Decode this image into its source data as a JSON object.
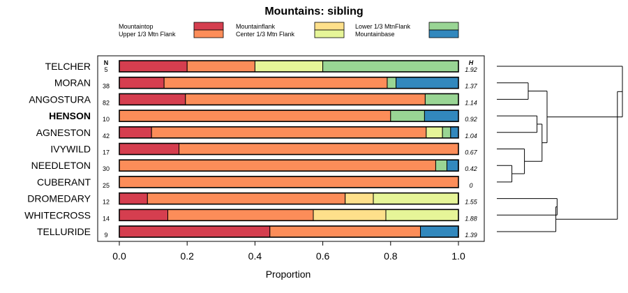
{
  "chart_data": {
    "type": "bar",
    "stacked": true,
    "orientation": "horizontal",
    "title": "Mountains: sibling",
    "xlabel": "Proportion",
    "ylabel": "",
    "xlim": [
      0,
      1
    ],
    "x_ticks": [
      "0.0",
      "0.2",
      "0.4",
      "0.6",
      "0.8",
      "1.0"
    ],
    "n_header": "N",
    "h_header": "H",
    "legend_position": "top",
    "series": [
      {
        "name": "Mountaintop",
        "color": "#d53e4f"
      },
      {
        "name": "Upper 1/3 Mtn Flank",
        "color": "#fc8d59"
      },
      {
        "name": "Mountainflank",
        "color": "#fee08b"
      },
      {
        "name": "Center 1/3 Mtn Flank",
        "color": "#e6f598"
      },
      {
        "name": "Lower 1/3 MtnFlank",
        "color": "#99d594"
      },
      {
        "name": "Mountainbase",
        "color": "#3288bd"
      }
    ],
    "rows": [
      {
        "label": "TELCHER",
        "bold": false,
        "n": "5",
        "h": "1.92",
        "values": [
          0.2,
          0.2,
          0.0,
          0.2,
          0.4,
          0.0
        ]
      },
      {
        "label": "MORAN",
        "bold": false,
        "n": "38",
        "h": "1.37",
        "values": [
          0.132,
          0.658,
          0.0,
          0.0,
          0.026,
          0.184
        ]
      },
      {
        "label": "ANGOSTURA",
        "bold": false,
        "n": "82",
        "h": "1.14",
        "values": [
          0.195,
          0.707,
          0.0,
          0.0,
          0.098,
          0.0
        ]
      },
      {
        "label": "HENSON",
        "bold": true,
        "n": "10",
        "h": "0.92",
        "values": [
          0.0,
          0.8,
          0.0,
          0.0,
          0.1,
          0.1
        ]
      },
      {
        "label": "AGNESTON",
        "bold": false,
        "n": "42",
        "h": "1.04",
        "values": [
          0.095,
          0.81,
          0.0,
          0.048,
          0.024,
          0.024
        ]
      },
      {
        "label": "IVYWILD",
        "bold": false,
        "n": "17",
        "h": "0.67",
        "values": [
          0.176,
          0.824,
          0.0,
          0.0,
          0.0,
          0.0
        ]
      },
      {
        "label": "NEEDLETON",
        "bold": false,
        "n": "30",
        "h": "0.42",
        "values": [
          0.0,
          0.933,
          0.0,
          0.0,
          0.033,
          0.033
        ]
      },
      {
        "label": "CUBERANT",
        "bold": false,
        "n": "25",
        "h": "0",
        "values": [
          0.0,
          1.0,
          0.0,
          0.0,
          0.0,
          0.0
        ]
      },
      {
        "label": "DROMEDARY",
        "bold": false,
        "n": "12",
        "h": "1.55",
        "values": [
          0.083,
          0.583,
          0.083,
          0.25,
          0.0,
          0.0
        ]
      },
      {
        "label": "WHITECROSS",
        "bold": false,
        "n": "14",
        "h": "1.88",
        "values": [
          0.143,
          0.429,
          0.214,
          0.214,
          0.0,
          0.0
        ]
      },
      {
        "label": "TELLURIDE",
        "bold": false,
        "n": "9",
        "h": "1.39",
        "values": [
          0.444,
          0.444,
          0.0,
          0.0,
          0.0,
          0.111
        ]
      }
    ],
    "dendrogram": [
      {
        "merge": [
          "MORAN",
          "ANGOSTURA"
        ],
        "height": 0.25
      },
      {
        "merge": [
          "NEEDLETON",
          "CUBERANT"
        ],
        "height": 0.12
      },
      {
        "merge": [
          "IVYWILD",
          "NEEDLETON+CUBERANT"
        ],
        "height": 0.22
      },
      {
        "merge": [
          "HENSON",
          "AGNESTON"
        ],
        "height": 0.32
      },
      {
        "merge": [
          "HENSON+AGNESTON",
          "IVYWILD+NEEDLETON+CUBERANT"
        ],
        "height": 0.36
      },
      {
        "merge": [
          "MORAN+ANGOSTURA",
          "HENSON+AGNESTON+IVYWILD+NEEDLETON+CUBERANT"
        ],
        "height": 0.4
      },
      {
        "merge": [
          "TELCHER",
          "MORAN..CUBERANT"
        ],
        "height": 1.0
      },
      {
        "merge": [
          "DROMEDARY",
          "WHITECROSS"
        ],
        "height": 0.48
      },
      {
        "merge": [
          "DROMEDARY+WHITECROSS",
          "TELLURIDE"
        ],
        "height": 0.47
      },
      {
        "merge": [
          "TELCHER..CUBERANT",
          "DROMEDARY+WHITECROSS+TELLURIDE"
        ],
        "height": 0.96
      }
    ]
  }
}
